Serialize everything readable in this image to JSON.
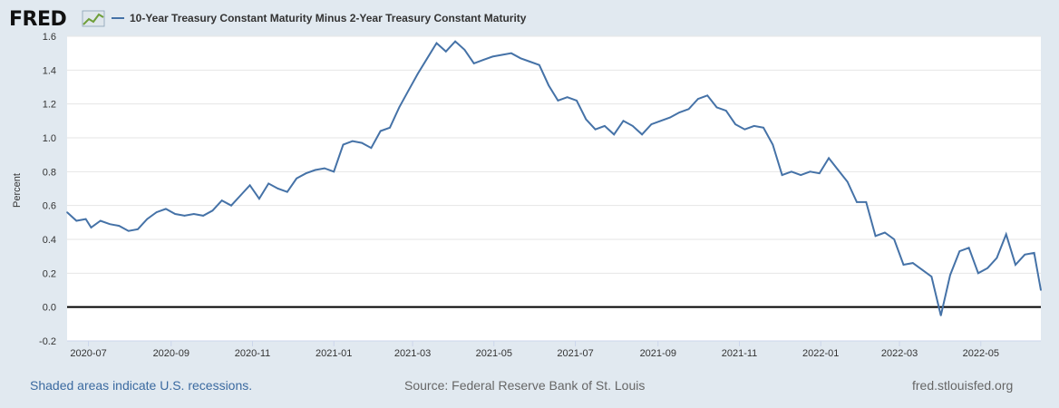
{
  "logo": {
    "text": "FRED"
  },
  "title": "10-Year Treasury Constant Maturity Minus 2-Year Treasury Constant Maturity",
  "footer": {
    "left": "Shaded areas indicate U.S. recessions.",
    "middle": "Source: Federal Reserve Bank of St. Louis",
    "right": "fred.stlouisfed.org"
  },
  "colors": {
    "line": "#4572a7",
    "zero_line": "#000000",
    "background": "#e1e9f0",
    "plot": "#ffffff"
  },
  "chart_data": {
    "type": "line",
    "title": "10-Year Treasury Constant Maturity Minus 2-Year Treasury Constant Maturity",
    "xlabel": "",
    "ylabel": "Percent",
    "ylim": [
      -0.2,
      1.6
    ],
    "xlim": [
      "2020-06-15",
      "2022-06-15"
    ],
    "yticks": [
      "-0.2",
      "0.0",
      "0.2",
      "0.4",
      "0.6",
      "0.8",
      "1.0",
      "1.2",
      "1.4",
      "1.6"
    ],
    "xticks": [
      "2020-07",
      "2020-09",
      "2020-11",
      "2021-01",
      "2021-03",
      "2021-05",
      "2021-07",
      "2021-09",
      "2021-11",
      "2022-01",
      "2022-03",
      "2022-05"
    ],
    "grid": true,
    "legend": "top-left",
    "series": [
      {
        "name": "10-Year Treasury Constant Maturity Minus 2-Year Treasury Constant Maturity",
        "points": [
          [
            "2020-06-15",
            0.56
          ],
          [
            "2020-06-22",
            0.51
          ],
          [
            "2020-06-29",
            0.52
          ],
          [
            "2020-07-03",
            0.47
          ],
          [
            "2020-07-10",
            0.51
          ],
          [
            "2020-07-17",
            0.49
          ],
          [
            "2020-07-24",
            0.48
          ],
          [
            "2020-07-31",
            0.45
          ],
          [
            "2020-08-07",
            0.46
          ],
          [
            "2020-08-14",
            0.52
          ],
          [
            "2020-08-21",
            0.56
          ],
          [
            "2020-08-28",
            0.58
          ],
          [
            "2020-09-04",
            0.55
          ],
          [
            "2020-09-11",
            0.54
          ],
          [
            "2020-09-18",
            0.55
          ],
          [
            "2020-09-25",
            0.54
          ],
          [
            "2020-10-02",
            0.57
          ],
          [
            "2020-10-09",
            0.63
          ],
          [
            "2020-10-16",
            0.6
          ],
          [
            "2020-10-23",
            0.66
          ],
          [
            "2020-10-30",
            0.72
          ],
          [
            "2020-11-06",
            0.64
          ],
          [
            "2020-11-13",
            0.73
          ],
          [
            "2020-11-20",
            0.7
          ],
          [
            "2020-11-27",
            0.68
          ],
          [
            "2020-12-04",
            0.76
          ],
          [
            "2020-12-11",
            0.79
          ],
          [
            "2020-12-18",
            0.81
          ],
          [
            "2020-12-25",
            0.82
          ],
          [
            "2021-01-01",
            0.8
          ],
          [
            "2021-01-08",
            0.96
          ],
          [
            "2021-01-15",
            0.98
          ],
          [
            "2021-01-22",
            0.97
          ],
          [
            "2021-01-29",
            0.94
          ],
          [
            "2021-02-05",
            1.04
          ],
          [
            "2021-02-12",
            1.06
          ],
          [
            "2021-02-19",
            1.18
          ],
          [
            "2021-02-26",
            1.28
          ],
          [
            "2021-03-05",
            1.38
          ],
          [
            "2021-03-12",
            1.47
          ],
          [
            "2021-03-19",
            1.56
          ],
          [
            "2021-03-26",
            1.51
          ],
          [
            "2021-04-02",
            1.57
          ],
          [
            "2021-04-09",
            1.52
          ],
          [
            "2021-04-16",
            1.44
          ],
          [
            "2021-04-23",
            1.46
          ],
          [
            "2021-04-30",
            1.48
          ],
          [
            "2021-05-07",
            1.49
          ],
          [
            "2021-05-14",
            1.5
          ],
          [
            "2021-05-21",
            1.47
          ],
          [
            "2021-05-28",
            1.45
          ],
          [
            "2021-06-04",
            1.43
          ],
          [
            "2021-06-11",
            1.31
          ],
          [
            "2021-06-18",
            1.22
          ],
          [
            "2021-06-25",
            1.24
          ],
          [
            "2021-07-02",
            1.22
          ],
          [
            "2021-07-09",
            1.11
          ],
          [
            "2021-07-16",
            1.05
          ],
          [
            "2021-07-23",
            1.07
          ],
          [
            "2021-07-30",
            1.02
          ],
          [
            "2021-08-06",
            1.1
          ],
          [
            "2021-08-13",
            1.07
          ],
          [
            "2021-08-20",
            1.02
          ],
          [
            "2021-08-27",
            1.08
          ],
          [
            "2021-09-03",
            1.1
          ],
          [
            "2021-09-10",
            1.12
          ],
          [
            "2021-09-17",
            1.15
          ],
          [
            "2021-09-24",
            1.17
          ],
          [
            "2021-10-01",
            1.23
          ],
          [
            "2021-10-08",
            1.25
          ],
          [
            "2021-10-15",
            1.18
          ],
          [
            "2021-10-22",
            1.16
          ],
          [
            "2021-10-29",
            1.08
          ],
          [
            "2021-11-05",
            1.05
          ],
          [
            "2021-11-12",
            1.07
          ],
          [
            "2021-11-19",
            1.06
          ],
          [
            "2021-11-26",
            0.96
          ],
          [
            "2021-12-03",
            0.78
          ],
          [
            "2021-12-10",
            0.8
          ],
          [
            "2021-12-17",
            0.78
          ],
          [
            "2021-12-24",
            0.8
          ],
          [
            "2021-12-31",
            0.79
          ],
          [
            "2022-01-07",
            0.88
          ],
          [
            "2022-01-14",
            0.81
          ],
          [
            "2022-01-21",
            0.74
          ],
          [
            "2022-01-28",
            0.62
          ],
          [
            "2022-02-04",
            0.62
          ],
          [
            "2022-02-11",
            0.42
          ],
          [
            "2022-02-18",
            0.44
          ],
          [
            "2022-02-25",
            0.4
          ],
          [
            "2022-03-04",
            0.25
          ],
          [
            "2022-03-11",
            0.26
          ],
          [
            "2022-03-18",
            0.22
          ],
          [
            "2022-03-25",
            0.18
          ],
          [
            "2022-04-01",
            -0.05
          ],
          [
            "2022-04-08",
            0.19
          ],
          [
            "2022-04-15",
            0.33
          ],
          [
            "2022-04-22",
            0.35
          ],
          [
            "2022-04-29",
            0.2
          ],
          [
            "2022-05-06",
            0.23
          ],
          [
            "2022-05-13",
            0.29
          ],
          [
            "2022-05-20",
            0.43
          ],
          [
            "2022-05-27",
            0.25
          ],
          [
            "2022-06-03",
            0.31
          ],
          [
            "2022-06-10",
            0.32
          ],
          [
            "2022-06-15",
            0.1
          ]
        ]
      }
    ]
  }
}
